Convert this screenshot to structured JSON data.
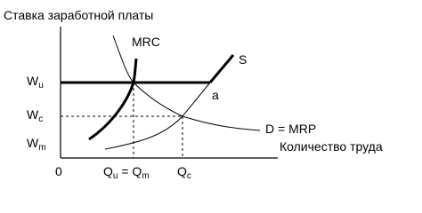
{
  "title": "Ставка заработной платы",
  "x_axis_label": "Количество труда",
  "origin": "0",
  "curves": {
    "mrc": "MRC",
    "supply": "S",
    "demand": "D = MRP",
    "point": "a"
  },
  "wages": {
    "wu": {
      "main": "W",
      "sub": "u"
    },
    "wc": {
      "main": "W",
      "sub": "c"
    },
    "wm": {
      "main": "W",
      "sub": "m"
    }
  },
  "quantities": {
    "qu": {
      "main": "Q",
      "sub": "u"
    },
    "equals": " = ",
    "qm": {
      "main": "Q",
      "sub": "m"
    },
    "qc": {
      "main": "Q",
      "sub": "c"
    }
  }
}
